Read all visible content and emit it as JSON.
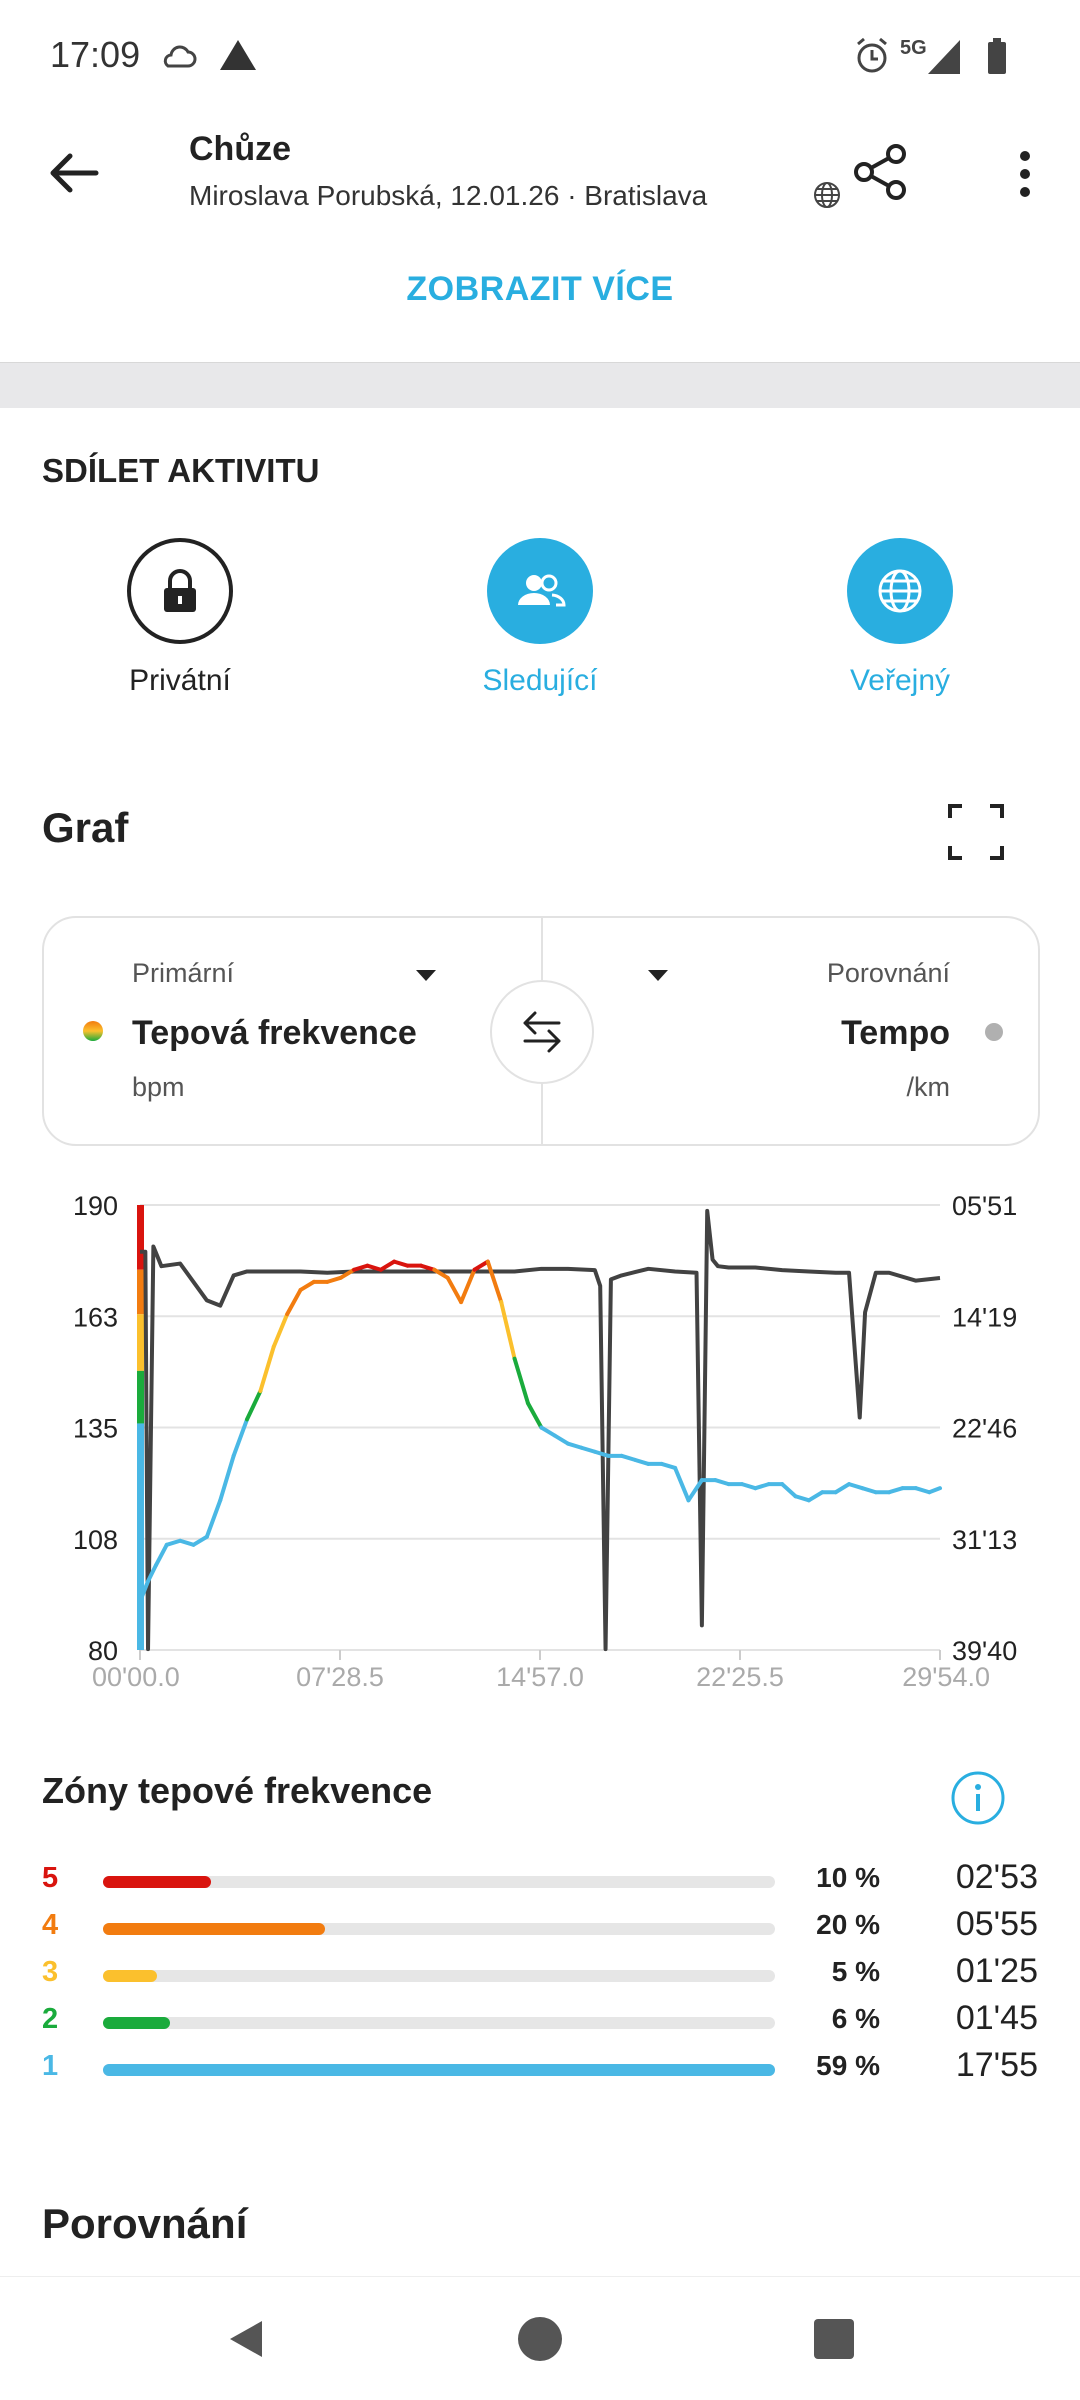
{
  "status_bar": {
    "time": "17:09",
    "network": "5G"
  },
  "header": {
    "title": "Chůze",
    "subtitle": "Miroslava Porubská, 12.01.26 · Bratislava"
  },
  "show_more_label": "ZOBRAZIT VÍCE",
  "share_section": {
    "title": "SDÍLET AKTIVITU",
    "options": [
      {
        "label": "Privátní",
        "icon": "lock-icon",
        "selected": false
      },
      {
        "label": "Sledující",
        "icon": "followers-icon",
        "selected": true
      },
      {
        "label": "Veřejný",
        "icon": "globe-icon",
        "selected": true
      }
    ]
  },
  "graph": {
    "title": "Graf",
    "primary": {
      "caption": "Primární",
      "metric": "Tepová frekvence",
      "unit": "bpm"
    },
    "comparison": {
      "caption": "Porovnání",
      "metric": "Tempo",
      "unit": "/km"
    }
  },
  "chart_data": {
    "type": "line",
    "title": "",
    "x_axis": {
      "tick_labels": [
        "00'00.0",
        "07'28.5",
        "14'57.0",
        "22'25.5",
        "29'54.0"
      ],
      "range_minutes": [
        0,
        29.9
      ]
    },
    "y_left": {
      "label": "bpm",
      "ticks": [
        190,
        163,
        135,
        108,
        80
      ],
      "range": [
        80,
        190
      ]
    },
    "y_right": {
      "label": "/km",
      "ticks": [
        "05'51",
        "14'19",
        "22'46",
        "31'13",
        "39'40"
      ],
      "inverted": true
    },
    "series": [
      {
        "name": "Tepová frekvence",
        "axis": "left",
        "x_minutes": [
          0,
          0.3,
          0.6,
          1.0,
          1.5,
          2.0,
          2.5,
          3.0,
          3.5,
          4.0,
          4.5,
          5.0,
          5.5,
          6.0,
          6.5,
          7.0,
          7.5,
          8.0,
          8.5,
          9.0,
          9.5,
          10.0,
          10.5,
          11.0,
          11.5,
          12.0,
          12.5,
          13.0,
          13.5,
          14.0,
          14.5,
          15.0,
          15.5,
          16.0,
          16.5,
          17.0,
          17.5,
          18.0,
          18.5,
          19.0,
          19.5,
          20.0,
          20.5,
          21.0,
          21.5,
          22.0,
          22.5,
          23.0,
          23.5,
          24.0,
          24.5,
          25.0,
          25.5,
          26.0,
          26.5,
          27.0,
          27.5,
          28.0,
          28.5,
          29.0,
          29.5,
          29.9
        ],
        "values": [
          92,
          97,
          101,
          106,
          107,
          106,
          108,
          117,
          128,
          137,
          144,
          155,
          163,
          169,
          171,
          171,
          172,
          174,
          175,
          174,
          176,
          175,
          175,
          174,
          172,
          166,
          174,
          176,
          166,
          152,
          141,
          135,
          133,
          131,
          130,
          129,
          128,
          128,
          127,
          126,
          126,
          125,
          117,
          122,
          122,
          121,
          121,
          120,
          121,
          121,
          118,
          117,
          119,
          119,
          121,
          120,
          119,
          119,
          120,
          120,
          119,
          120
        ]
      },
      {
        "name": "Tempo",
        "axis": "right",
        "x_minutes": [
          0,
          0.2,
          0.3,
          0.5,
          0.8,
          1.5,
          2.5,
          3.0,
          3.5,
          4.0,
          5.0,
          6.0,
          7.0,
          8.0,
          9.0,
          10.0,
          11.0,
          12.0,
          13.0,
          14.0,
          15.0,
          16.0,
          17.0,
          17.2,
          17.4,
          17.6,
          18.0,
          19.0,
          20.0,
          20.8,
          21.0,
          21.2,
          21.4,
          21.6,
          22.0,
          23.0,
          24.0,
          25.0,
          26.0,
          26.5,
          26.9,
          27.1,
          27.5,
          28.0,
          29.0,
          29.9
        ],
        "values_minutes": [
          9.4,
          9.4,
          39.6,
          9.0,
          10.5,
          10.3,
          13.1,
          13.5,
          11.2,
          10.9,
          10.9,
          10.9,
          11.0,
          10.9,
          10.9,
          10.9,
          10.9,
          10.9,
          10.9,
          10.9,
          10.7,
          10.7,
          10.8,
          12.0,
          39.6,
          11.5,
          11.2,
          10.7,
          10.9,
          11.0,
          37.8,
          6.3,
          10.0,
          10.5,
          10.6,
          10.6,
          10.8,
          10.9,
          11.0,
          11.0,
          22.0,
          14.0,
          11.0,
          11.0,
          11.6,
          11.4
        ]
      }
    ]
  },
  "zones": {
    "title": "Zóny tepové frekvence",
    "items": [
      {
        "zone": "5",
        "percent_label": "10 %",
        "time": "02'53",
        "fraction": 0.16,
        "color": "#d9140e"
      },
      {
        "zone": "4",
        "percent_label": "20 %",
        "time": "05'55",
        "fraction": 0.33,
        "color": "#f27c10"
      },
      {
        "zone": "3",
        "percent_label": "5 %",
        "time": "01'25",
        "fraction": 0.08,
        "color": "#fbc02d"
      },
      {
        "zone": "2",
        "percent_label": "6 %",
        "time": "01'45",
        "fraction": 0.1,
        "color": "#1aab3c"
      },
      {
        "zone": "1",
        "percent_label": "59 %",
        "time": "17'55",
        "fraction": 1.0,
        "color": "#4ab8e5"
      }
    ]
  },
  "comparison_title": "Porovnání",
  "colors": {
    "accent": "#29aee0",
    "zone5": "#d9140e",
    "zone4": "#f27c10",
    "zone3": "#fbc02d",
    "zone2": "#1aab3c",
    "zone1": "#4ab8e5",
    "pace_line": "#424242"
  }
}
